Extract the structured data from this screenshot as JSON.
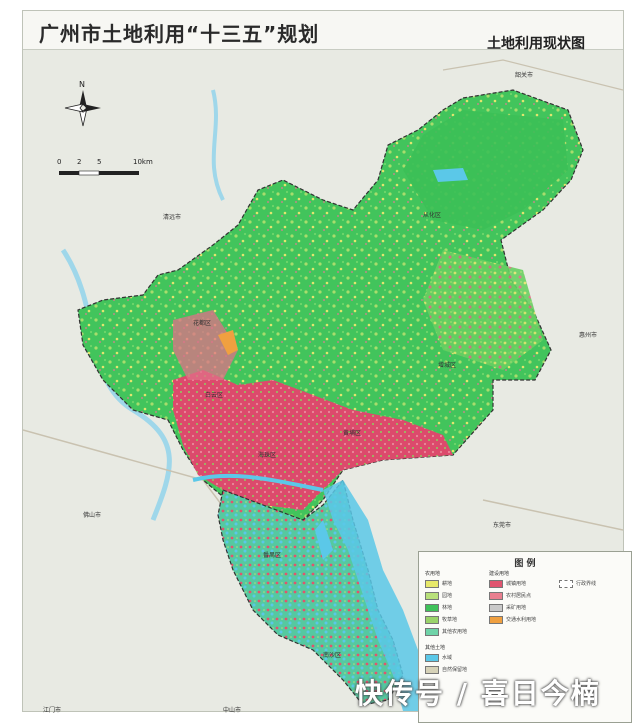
{
  "header": {
    "title": "广州市土地利用“十三五”规划",
    "subtitle": "土地利用现状图"
  },
  "map": {
    "north_label": "N",
    "scale_labels": [
      "0",
      "2",
      "5",
      "10km"
    ],
    "places": {
      "shaoguan": "韶关市",
      "conghua": "从化区",
      "zengcheng": "增城区",
      "huizhou": "惠州市",
      "qingyuan": "清远市",
      "foshan": "佛山市",
      "nansha": "南沙区",
      "panyu": "番禺区",
      "dongguan": "东莞市",
      "huadu": "花都区",
      "baiyun": "白云区",
      "haizhu": "海珠区",
      "huangpu": "黄埔区",
      "jiangmen": "江门市",
      "zhongshan": "中山市"
    }
  },
  "legend": {
    "title": "图 例",
    "headers": {
      "agri": "农用地",
      "build": "建设用地",
      "other": "其他土地"
    },
    "items": [
      {
        "label": "耕地",
        "color": "#e7e86a"
      },
      {
        "label": "园地",
        "color": "#b8e07a"
      },
      {
        "label": "林地",
        "color": "#3fc25a"
      },
      {
        "label": "牧草地",
        "color": "#9ad36a"
      },
      {
        "label": "其他农用地",
        "color": "#6fd3a8"
      },
      {
        "label": "城镇用地",
        "color": "#e0546f"
      },
      {
        "label": "农村居民点",
        "color": "#e97f8f"
      },
      {
        "label": "采矿用地",
        "color": "#c9c9c9"
      },
      {
        "label": "交通水利用地",
        "color": "#f0a040"
      },
      {
        "label": "水域",
        "color": "#5bc8e8"
      },
      {
        "label": "自然保留地",
        "color": "#d6d2b8"
      },
      {
        "label": "行政界线",
        "color": "#555555"
      }
    ]
  },
  "watermark": "快传号 / 喜日今楠",
  "colors": {
    "forest": "#3fc25a",
    "urban": "#e0546f",
    "water": "#5bc8e8",
    "farmland": "#e7e86a",
    "outside": "#e9ebe4"
  }
}
